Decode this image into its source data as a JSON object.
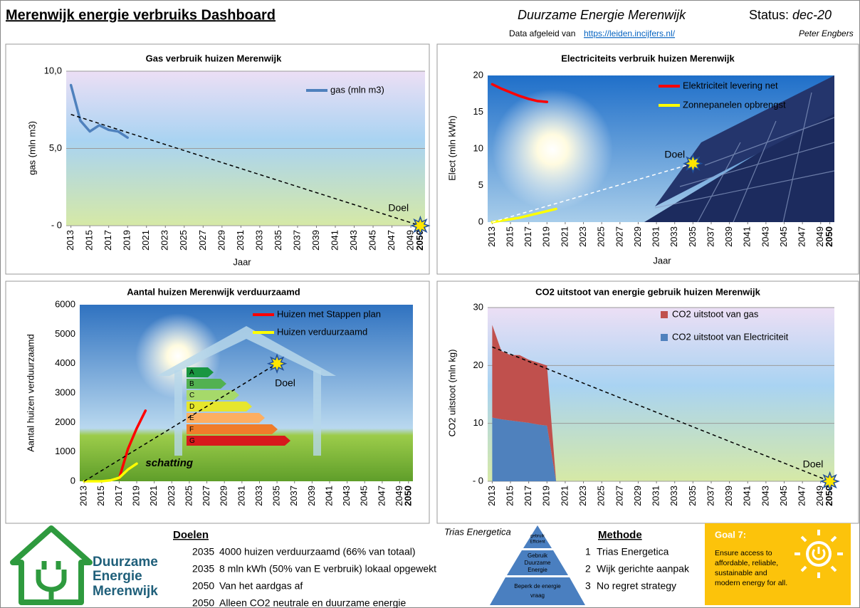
{
  "header": {
    "title": "Merenwijk energie verbruiks Dashboard",
    "org": "Duurzame Energie Merenwijk",
    "status_label": "Status:",
    "status": "dec-20",
    "source_label": "Data afgeleid van",
    "source_link": "https://leiden.incijfers.nl/",
    "author": "Peter Engbers"
  },
  "chart_data": [
    {
      "type": "line",
      "title": "Gas verbruik huizen Merenwijk",
      "ylabel": "gas (mln m3)",
      "xlabel": "Jaar",
      "xlim": [
        2013,
        2050
      ],
      "xticks": [
        2013,
        2015,
        2017,
        2019,
        2021,
        2023,
        2025,
        2027,
        2029,
        2031,
        2033,
        2035,
        2037,
        2039,
        2041,
        2043,
        2045,
        2047,
        2049,
        2050
      ],
      "ylim": [
        0,
        10
      ],
      "yticks": [
        {
          "value": 0,
          "label": "- 0"
        },
        {
          "value": 5,
          "label": "5,0"
        },
        {
          "value": 10,
          "label": "10,0"
        }
      ],
      "grid": true,
      "legend": "upper right",
      "series": [
        {
          "name": "gas (mln m3)",
          "color": "#4f81bd",
          "x": [
            2013,
            2014,
            2015,
            2016,
            2017,
            2018,
            2019
          ],
          "values": [
            9.1,
            6.8,
            6.1,
            6.5,
            6.2,
            6.1,
            5.7
          ]
        }
      ],
      "trend": {
        "color": "#000000",
        "x": [
          2013,
          2050
        ],
        "values": [
          7.2,
          0
        ]
      },
      "annotations": [
        {
          "text": "Doel",
          "x": 2050,
          "y": 0,
          "marker": "star"
        }
      ]
    },
    {
      "type": "line",
      "title": "Electriciteits  verbruik huizen Merenwijk",
      "ylabel": "Elect (mln kWh)",
      "xlabel": "Jaar",
      "xlim": [
        2013,
        2050
      ],
      "xticks": [
        2013,
        2015,
        2017,
        2019,
        2021,
        2023,
        2025,
        2027,
        2029,
        2031,
        2033,
        2035,
        2037,
        2039,
        2041,
        2043,
        2045,
        2047,
        2049,
        2050
      ],
      "ylim": [
        0,
        20
      ],
      "yticks": [
        0,
        5,
        10,
        15,
        20
      ],
      "grid": false,
      "legend": "upper right",
      "series": [
        {
          "name": "Elektriciteit levering net",
          "color": "#ff0000",
          "x": [
            2013,
            2014,
            2015,
            2016,
            2017,
            2018,
            2019
          ],
          "values": [
            18.8,
            18.2,
            17.7,
            17.2,
            16.8,
            16.5,
            16.4
          ]
        },
        {
          "name": "Zonnepanelen  opbrengst",
          "color": "#ffff00",
          "x": [
            2013,
            2014,
            2015,
            2016,
            2017,
            2018,
            2019,
            2020
          ],
          "values": [
            0,
            0.2,
            0.4,
            0.6,
            0.9,
            1.2,
            1.5,
            1.8
          ]
        }
      ],
      "trend": {
        "color": "#ffffff",
        "x": [
          2013,
          2035
        ],
        "values": [
          0,
          8
        ]
      },
      "annotations": [
        {
          "text": "Doel",
          "x": 2035,
          "y": 8,
          "marker": "star"
        }
      ]
    },
    {
      "type": "line",
      "title": "Aantal huizen Merenwijk verduurzaamd",
      "ylabel": "Aantal huizen  verduurzaamd",
      "xlim": [
        2013,
        2050
      ],
      "xticks": [
        2013,
        2015,
        2017,
        2019,
        2021,
        2023,
        2025,
        2027,
        2029,
        2031,
        2033,
        2035,
        2037,
        2039,
        2041,
        2043,
        2045,
        2047,
        2049,
        2050
      ],
      "ylim": [
        0,
        6000
      ],
      "yticks": [
        0,
        1000,
        2000,
        3000,
        4000,
        5000,
        6000
      ],
      "grid": false,
      "legend": "upper right",
      "series": [
        {
          "name": "Huizen met Stappen plan",
          "color": "#ff0000",
          "x": [
            2017,
            2018,
            2019,
            2020
          ],
          "values": [
            100,
            1100,
            1800,
            2400
          ]
        },
        {
          "name": "Huizen verduurzaamd",
          "color": "#ffff00",
          "x": [
            2013,
            2014,
            2015,
            2016,
            2017,
            2018,
            2019
          ],
          "values": [
            0,
            0,
            0,
            30,
            120,
            400,
            600
          ]
        }
      ],
      "trend": {
        "color": "#000000",
        "x": [
          2013,
          2035
        ],
        "values": [
          0,
          4000
        ]
      },
      "annotations": [
        {
          "text": "Doel",
          "x": 2035,
          "y": 4000,
          "marker": "star"
        },
        {
          "text": "schatting",
          "x": 2020,
          "y": 600
        }
      ]
    },
    {
      "type": "area",
      "title": "CO2 uitstoot van energie gebruik huizen Merenwijk",
      "ylabel": "CO2 uitstoot (mln kg)",
      "xlim": [
        2013,
        2050
      ],
      "xticks": [
        2013,
        2015,
        2017,
        2019,
        2021,
        2023,
        2025,
        2027,
        2029,
        2031,
        2033,
        2035,
        2037,
        2039,
        2041,
        2043,
        2045,
        2047,
        2049,
        2050
      ],
      "ylim": [
        0,
        30
      ],
      "yticks": [
        {
          "value": 0,
          "label": "- 0"
        },
        10,
        20,
        30
      ],
      "grid": true,
      "legend": "upper right",
      "series": [
        {
          "name": "CO2 uitstoot van gas",
          "color": "#c0504d",
          "x": [
            2013,
            2014,
            2015,
            2016,
            2017,
            2018,
            2019,
            2020
          ],
          "values": [
            16,
            11.8,
            11.3,
            11.5,
            10.9,
            10.7,
            10.4,
            0
          ]
        },
        {
          "name": "CO2 uitstoot van Electriciteit",
          "color": "#4f81bd",
          "x": [
            2013,
            2014,
            2015,
            2016,
            2017,
            2018,
            2019,
            2020
          ],
          "values": [
            11,
            10.7,
            10.5,
            10.3,
            10.1,
            9.8,
            9.6,
            0
          ]
        }
      ],
      "trend": {
        "color": "#000000",
        "x": [
          2013,
          2050
        ],
        "values": [
          23.2,
          0
        ]
      },
      "annotations": [
        {
          "text": "Doel",
          "x": 2050,
          "y": 0,
          "marker": "star"
        }
      ]
    }
  ],
  "energy_label": {
    "classes": [
      "A",
      "B",
      "C",
      "D",
      "E",
      "F",
      "G"
    ]
  },
  "footer": {
    "logo": [
      "Duurzame",
      "Energie",
      "Merenwijk"
    ],
    "doelen": {
      "title": "Doelen",
      "rows": [
        [
          "2035",
          "4000 huizen verduurzaamd (66% van totaal)"
        ],
        [
          "2035",
          "8 mln kWh (50% van E verbruik) lokaal opgewekt"
        ],
        [
          "2050",
          "Van het aardgas af"
        ],
        [
          "2050",
          "Alleen CO2 neutrale en duurzame energie"
        ]
      ]
    },
    "trias": {
      "title": "Trias Energetica",
      "levels": [
        [
          "gebruik",
          "Efficient"
        ],
        [
          "Gebruik",
          "Duurzame",
          "Energie"
        ],
        [
          "Beperk de energie",
          "vraag"
        ]
      ]
    },
    "methode": {
      "title": "Methode",
      "rows": [
        [
          "1",
          "Trias Energetica"
        ],
        [
          "2",
          "Wijk gerichte aanpak"
        ],
        [
          "3",
          "No regret strategy"
        ]
      ]
    },
    "goal": {
      "title": "Goal 7:",
      "lines": [
        "Ensure access to",
        "affordable, reliable,",
        "sustainable and",
        "modern energy for all."
      ]
    }
  }
}
